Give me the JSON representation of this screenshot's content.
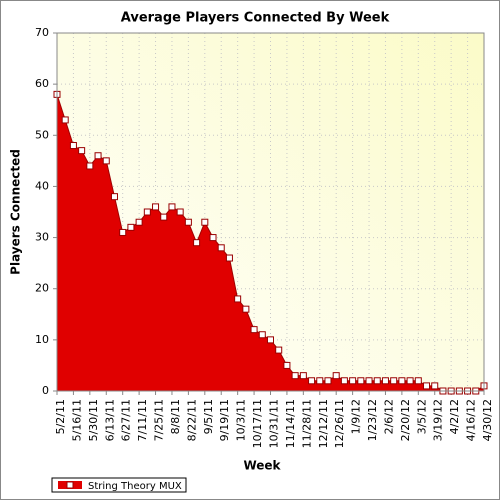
{
  "chart_data": {
    "type": "area",
    "title": "Average Players Connected By Week",
    "x_label": "Week",
    "y_label": "Players Connected",
    "categories": [
      "5/2/11",
      null,
      "5/16/11",
      null,
      "5/30/11",
      null,
      "6/13/11",
      null,
      "6/27/11",
      null,
      "7/11/11",
      null,
      "7/25/11",
      null,
      "8/8/11",
      null,
      "8/22/11",
      null,
      "9/5/11",
      null,
      "9/19/11",
      null,
      "10/3/11",
      null,
      "10/17/11",
      null,
      "10/31/11",
      null,
      "11/14/11",
      null,
      "11/28/11",
      null,
      "12/12/11",
      null,
      "12/26/11",
      null,
      "1/9/12",
      null,
      "1/23/12",
      null,
      "2/6/12",
      null,
      "2/20/12",
      null,
      "3/5/12",
      null,
      "3/19/12",
      null,
      "4/2/12",
      null,
      "4/16/12",
      null,
      "4/30/12"
    ],
    "series": [
      {
        "name": "String Theory MUX",
        "color": "#e00000",
        "values": [
          58,
          53,
          48,
          47,
          44,
          46,
          45,
          38,
          31,
          32,
          33,
          35,
          36,
          34,
          36,
          35,
          33,
          29,
          33,
          30,
          28,
          26,
          18,
          16,
          12,
          11,
          10,
          8,
          5,
          3,
          3,
          2,
          2,
          2,
          3,
          2,
          2,
          2,
          2,
          2,
          2,
          2,
          2,
          2,
          2,
          1,
          1,
          0,
          0,
          0,
          0,
          0,
          1
        ]
      }
    ],
    "ylim": [
      0,
      70
    ],
    "yticks": [
      0,
      10,
      20,
      30,
      40,
      50,
      60,
      70
    ],
    "grid": true
  }
}
